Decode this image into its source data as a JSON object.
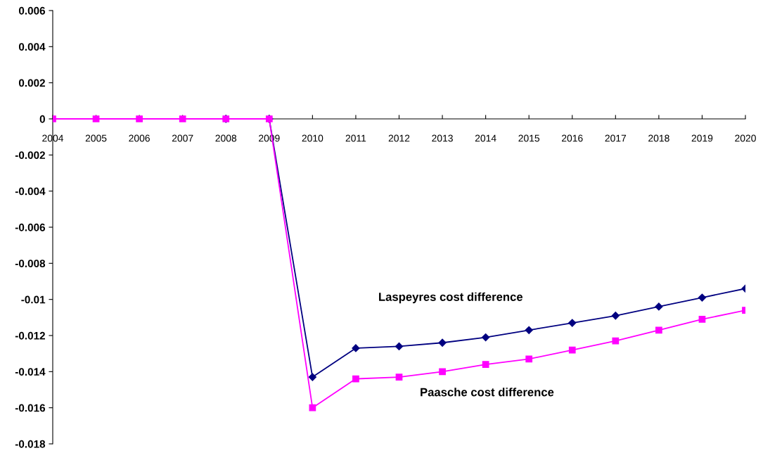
{
  "chart_data": {
    "type": "line",
    "categories": [
      "2004",
      "2005",
      "2006",
      "2007",
      "2008",
      "2009",
      "2010",
      "2011",
      "2012",
      "2013",
      "2014",
      "2015",
      "2016",
      "2017",
      "2018",
      "2019",
      "2020"
    ],
    "series": [
      {
        "name": "Laspeyres cost difference",
        "color": "#000080",
        "marker": "diamond",
        "values": [
          null,
          null,
          null,
          null,
          0,
          0,
          -0.0143,
          -0.0127,
          -0.0126,
          -0.0124,
          -0.0121,
          -0.0117,
          -0.0113,
          -0.0109,
          -0.0104,
          -0.0099,
          -0.0094
        ]
      },
      {
        "name": "Paasche cost difference",
        "color": "#ff00ff",
        "marker": "square",
        "values": [
          0,
          0,
          0,
          0,
          0,
          0,
          -0.016,
          -0.0144,
          -0.0143,
          -0.014,
          -0.0136,
          -0.0133,
          -0.0128,
          -0.0123,
          -0.0117,
          -0.0111,
          -0.0106
        ]
      }
    ],
    "ylim": [
      -0.018,
      0.006
    ],
    "yticks": [
      {
        "value": -0.018,
        "label": "-0.018"
      },
      {
        "value": -0.016,
        "label": "-0.016"
      },
      {
        "value": -0.014,
        "label": "-0.014"
      },
      {
        "value": -0.012,
        "label": "-0.012"
      },
      {
        "value": -0.01,
        "label": "-0.01"
      },
      {
        "value": -0.008,
        "label": "-0.008"
      },
      {
        "value": -0.006,
        "label": "-0.006"
      },
      {
        "value": -0.004,
        "label": "-0.004"
      },
      {
        "value": -0.002,
        "label": "-0.002"
      },
      {
        "value": 0,
        "label": "0"
      },
      {
        "value": 0.002,
        "label": "0.002"
      },
      {
        "value": 0.004,
        "label": "0.004"
      },
      {
        "value": 0.006,
        "label": "0.006"
      }
    ],
    "grid": false,
    "legend": false,
    "line_style": "solid"
  }
}
